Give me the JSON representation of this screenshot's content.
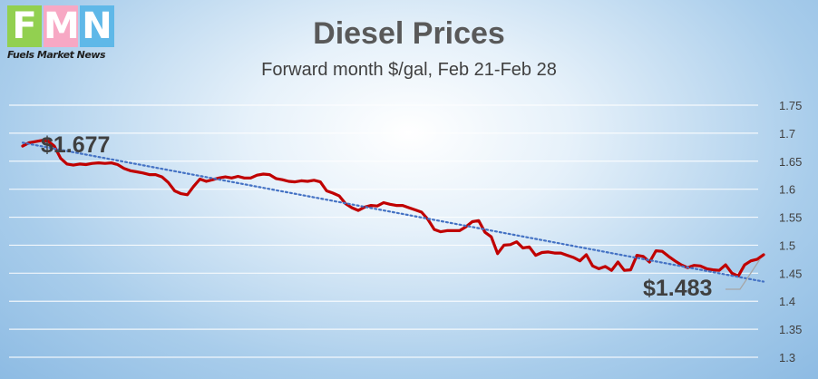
{
  "logo": {
    "letters": [
      "F",
      "M",
      "N"
    ],
    "letter_colors": [
      "#92d050",
      "#f7a8c4",
      "#5fb8e8"
    ],
    "tagline": "Fuels Market News"
  },
  "chart_data": {
    "type": "line",
    "title": "Diesel Prices",
    "subtitle": "Forward month $/gal, Feb 21-Feb 28",
    "ylim": [
      1.3,
      1.75
    ],
    "yticks": [
      "1.75",
      "1.7",
      "1.65",
      "1.6",
      "1.55",
      "1.5",
      "1.45",
      "1.4",
      "1.35",
      "1.3"
    ],
    "grid": true,
    "series": [
      {
        "color": "#c00000",
        "values": [
          1.677,
          1.683,
          1.685,
          1.687,
          1.686,
          1.677,
          1.655,
          1.645,
          1.643,
          1.645,
          1.644,
          1.646,
          1.647,
          1.646,
          1.647,
          1.644,
          1.637,
          1.633,
          1.631,
          1.629,
          1.626,
          1.626,
          1.622,
          1.612,
          1.597,
          1.592,
          1.59,
          1.605,
          1.618,
          1.614,
          1.617,
          1.62,
          1.622,
          1.62,
          1.623,
          1.62,
          1.62,
          1.625,
          1.627,
          1.626,
          1.619,
          1.617,
          1.614,
          1.613,
          1.615,
          1.614,
          1.616,
          1.613,
          1.597,
          1.593,
          1.588,
          1.574,
          1.567,
          1.562,
          1.568,
          1.571,
          1.57,
          1.576,
          1.573,
          1.571,
          1.571,
          1.567,
          1.563,
          1.559,
          1.546,
          1.528,
          1.524,
          1.526,
          1.526,
          1.526,
          1.533,
          1.542,
          1.544,
          1.523,
          1.515,
          1.485,
          1.5,
          1.501,
          1.506,
          1.495,
          1.497,
          1.482,
          1.487,
          1.488,
          1.486,
          1.486,
          1.482,
          1.478,
          1.472,
          1.483,
          1.463,
          1.458,
          1.462,
          1.455,
          1.47,
          1.455,
          1.456,
          1.482,
          1.48,
          1.47,
          1.49,
          1.489,
          1.48,
          1.472,
          1.465,
          1.46,
          1.464,
          1.463,
          1.458,
          1.456,
          1.455,
          1.465,
          1.45,
          1.445,
          1.465,
          1.472,
          1.475,
          1.483
        ]
      }
    ],
    "trendline": {
      "color": "#4472c4",
      "style": "dotted",
      "start": 1.683,
      "end": 1.435
    },
    "annotations": [
      {
        "text": "$1.677"
      },
      {
        "text": "$1.483"
      }
    ]
  }
}
